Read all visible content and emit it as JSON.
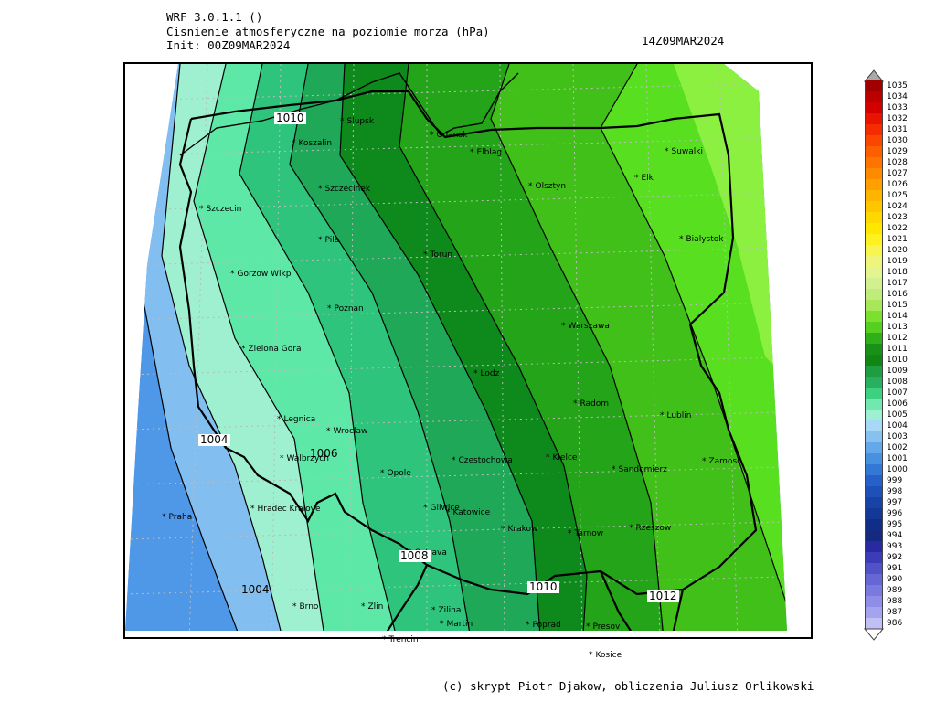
{
  "header": {
    "model": "WRF 3.0.1.1 ()",
    "field": "Cisnienie atmosferyczne na poziomie morza (hPa)",
    "init": "Init: 00Z09MAR2024",
    "valid": "14Z09MAR2024"
  },
  "cities": [
    {
      "name": "Slupsk"
    },
    {
      "name": "Gdansk"
    },
    {
      "name": "Koszalin"
    },
    {
      "name": "Elblag"
    },
    {
      "name": "Suwalki"
    },
    {
      "name": "Elk"
    },
    {
      "name": "Szczecinek"
    },
    {
      "name": "Olsztyn"
    },
    {
      "name": "Szczecin"
    },
    {
      "name": "Bialystok"
    },
    {
      "name": "Pila"
    },
    {
      "name": "Torun"
    },
    {
      "name": "Gorzow Wlkp"
    },
    {
      "name": "Poznan"
    },
    {
      "name": "Warszawa"
    },
    {
      "name": "Zielona Gora"
    },
    {
      "name": "Lodz"
    },
    {
      "name": "Radom"
    },
    {
      "name": "Lublin"
    },
    {
      "name": "Legnica"
    },
    {
      "name": "Wroclaw"
    },
    {
      "name": "Walbrzych"
    },
    {
      "name": "Czestochowa"
    },
    {
      "name": "Kielce"
    },
    {
      "name": "Zamosc"
    },
    {
      "name": "Opole"
    },
    {
      "name": "Sandomierz"
    },
    {
      "name": "Praha"
    },
    {
      "name": "Hradec Kralove"
    },
    {
      "name": "Gliwice"
    },
    {
      "name": "Katowice"
    },
    {
      "name": "Krakow"
    },
    {
      "name": "Tarnow"
    },
    {
      "name": "Rzeszow"
    },
    {
      "name": "Ostrava"
    },
    {
      "name": "Brno"
    },
    {
      "name": "Zlin"
    },
    {
      "name": "Zilina"
    },
    {
      "name": "Martin"
    },
    {
      "name": "Poprad"
    },
    {
      "name": "Presov"
    },
    {
      "name": "Trencin"
    },
    {
      "name": "Kosice"
    }
  ],
  "isobar_labels": [
    "1010",
    "1004",
    "1006",
    "1008",
    "1010",
    "1004",
    "1012"
  ],
  "legend": {
    "levels": [
      "1035",
      "1034",
      "1033",
      "1032",
      "1031",
      "1030",
      "1029",
      "1028",
      "1027",
      "1026",
      "1025",
      "1024",
      "1023",
      "1022",
      "1021",
      "1020",
      "1019",
      "1018",
      "1017",
      "1016",
      "1015",
      "1014",
      "1013",
      "1012",
      "1011",
      "1010",
      "1009",
      "1008",
      "1007",
      "1006",
      "1005",
      "1004",
      "1003",
      "1002",
      "1001",
      "1000",
      "999",
      "998",
      "997",
      "996",
      "995",
      "994",
      "993",
      "992",
      "991",
      "990",
      "989",
      "988",
      "987",
      "986"
    ],
    "colors": [
      "#a00000",
      "#bb0000",
      "#d40000",
      "#e81400",
      "#f52c00",
      "#fa4600",
      "#fc5e00",
      "#fd7400",
      "#fe8a00",
      "#ffa000",
      "#ffb400",
      "#ffc600",
      "#ffd800",
      "#ffe700",
      "#fff020",
      "#f8f450",
      "#eef57a",
      "#e2f58e",
      "#d2f090",
      "#c0ec7c",
      "#a8e65a",
      "#7ce030",
      "#55d020",
      "#30b018",
      "#1a9018",
      "#128612",
      "#1e9e40",
      "#28b060",
      "#3cd080",
      "#70e8b0",
      "#9ef0d0",
      "#a8d8f8",
      "#88c0f0",
      "#64a8ea",
      "#4890e0",
      "#3478d6",
      "#2660c8",
      "#1e50b8",
      "#1842a8",
      "#143898",
      "#102e88",
      "#142a80",
      "#2a2aa0",
      "#3c3cb8",
      "#5252c8",
      "#6666d4",
      "#7a7ade",
      "#8e8ee6",
      "#a4a4ee",
      "#c0c0f4"
    ]
  },
  "footer": "(c) skrypt Piotr Djakow, obliczenia Juliusz Orlikowski"
}
